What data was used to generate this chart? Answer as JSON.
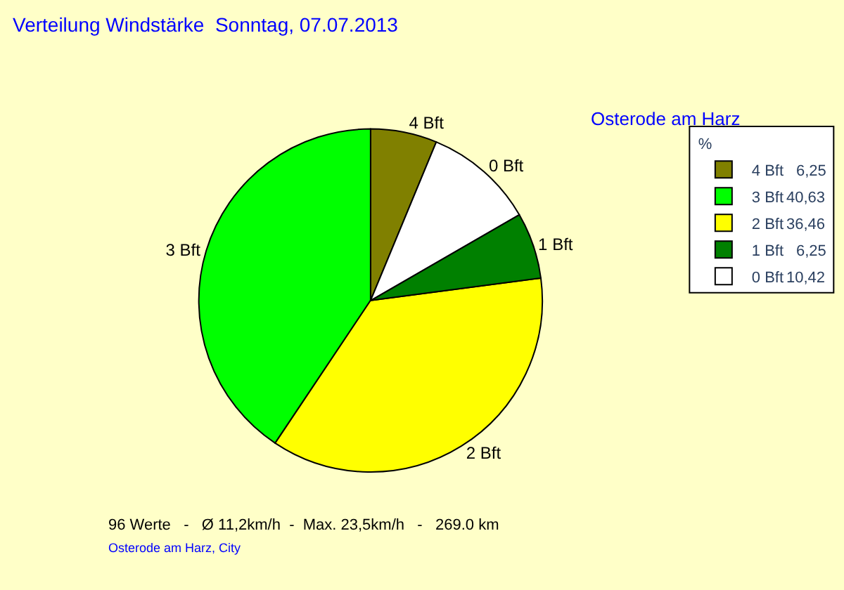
{
  "chart_data": {
    "type": "pie",
    "title": "Verteilung Windstärke  Sonntag, 07.07.2013",
    "subtitle": "Osterode am Harz",
    "legend_title": "%",
    "legend": "top right",
    "categories": [
      "4 Bft",
      "3 Bft",
      "2 Bft",
      "1 Bft",
      "0 Bft"
    ],
    "values": [
      6.25,
      40.63,
      36.46,
      6.25,
      10.42
    ],
    "value_labels": [
      "6,25",
      "40,63",
      "36,46",
      "6,25",
      "10,42"
    ],
    "colors": [
      "#808000",
      "#00ff00",
      "#ffff00",
      "#008000",
      "#ffffff"
    ],
    "annotations": [
      "96 Werte   -   Ø 11,2km/h  -  Max. 23,5km/h   -   269.0 km",
      "Osterode am Harz, City"
    ]
  }
}
